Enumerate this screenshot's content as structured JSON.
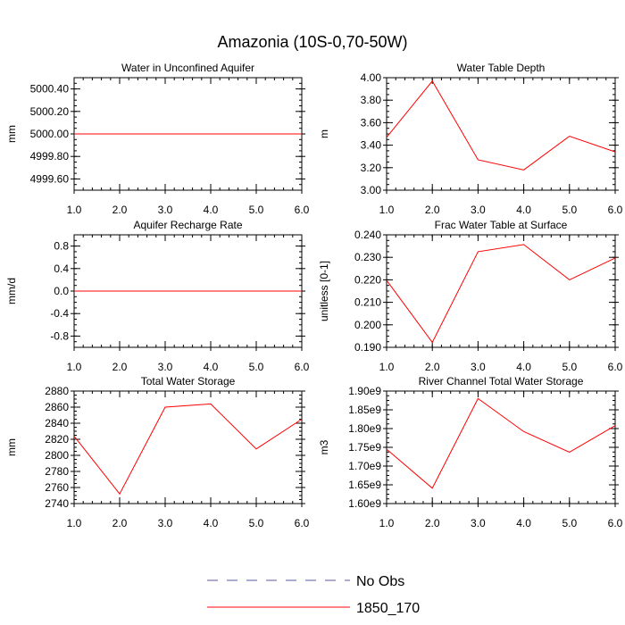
{
  "title": "Amazonia (10S-0,70-50W)",
  "colors": {
    "series": "#ff0000",
    "obs": "#5a5aa0",
    "axis": "#000000"
  },
  "legend": {
    "obs_label": "No Obs",
    "series_label": "1850_170"
  },
  "chart_data": [
    {
      "type": "line",
      "title": "Water in Unconfined Aquifer",
      "ylabel": "mm",
      "x": [
        1,
        2,
        3,
        4,
        5,
        6
      ],
      "xlim": [
        1,
        6
      ],
      "xticks": [
        "1.0",
        "2.0",
        "3.0",
        "4.0",
        "5.0",
        "6.0"
      ],
      "ylim": [
        4999.5,
        5000.5
      ],
      "yticks": [
        {
          "v": 4999.6,
          "label": "4999.60"
        },
        {
          "v": 4999.8,
          "label": "4999.80"
        },
        {
          "v": 5000.0,
          "label": "5000.00"
        },
        {
          "v": 5000.2,
          "label": "5000.20"
        },
        {
          "v": 5000.4,
          "label": "5000.40"
        }
      ],
      "series": [
        {
          "name": "1850_170",
          "values": [
            5000,
            5000,
            5000,
            5000,
            5000,
            5000
          ]
        }
      ]
    },
    {
      "type": "line",
      "title": "Water Table Depth",
      "ylabel": "m",
      "x": [
        1,
        2,
        3,
        4,
        5,
        6
      ],
      "xlim": [
        1,
        6
      ],
      "xticks": [
        "1.0",
        "2.0",
        "3.0",
        "4.0",
        "5.0",
        "6.0"
      ],
      "ylim": [
        3.0,
        4.0
      ],
      "yticks": [
        {
          "v": 3.0,
          "label": "3.00"
        },
        {
          "v": 3.2,
          "label": "3.20"
        },
        {
          "v": 3.4,
          "label": "3.40"
        },
        {
          "v": 3.6,
          "label": "3.60"
        },
        {
          "v": 3.8,
          "label": "3.80"
        },
        {
          "v": 4.0,
          "label": "4.00"
        }
      ],
      "series": [
        {
          "name": "1850_170",
          "values": [
            3.47,
            3.97,
            3.27,
            3.18,
            3.48,
            3.34
          ]
        }
      ]
    },
    {
      "type": "line",
      "title": "Aquifer Recharge Rate",
      "ylabel": "mm/d",
      "x": [
        1,
        2,
        3,
        4,
        5,
        6
      ],
      "xlim": [
        1,
        6
      ],
      "xticks": [
        "1.0",
        "2.0",
        "3.0",
        "4.0",
        "5.0",
        "6.0"
      ],
      "ylim": [
        -1.0,
        1.0
      ],
      "yticks": [
        {
          "v": -0.8,
          "label": "-0.8"
        },
        {
          "v": -0.4,
          "label": "-0.4"
        },
        {
          "v": 0.0,
          "label": "0.0"
        },
        {
          "v": 0.4,
          "label": "0.4"
        },
        {
          "v": 0.8,
          "label": "0.8"
        }
      ],
      "series": [
        {
          "name": "1850_170",
          "values": [
            0,
            0,
            0,
            0,
            0,
            0
          ]
        }
      ]
    },
    {
      "type": "line",
      "title": "Frac Water Table at Surface",
      "ylabel": "unitless [0-1]",
      "x": [
        1,
        2,
        3,
        4,
        5,
        6
      ],
      "xlim": [
        1,
        6
      ],
      "xticks": [
        "1.0",
        "2.0",
        "3.0",
        "4.0",
        "5.0",
        "6.0"
      ],
      "ylim": [
        0.19,
        0.24
      ],
      "yticks": [
        {
          "v": 0.19,
          "label": "0.190"
        },
        {
          "v": 0.2,
          "label": "0.200"
        },
        {
          "v": 0.21,
          "label": "0.210"
        },
        {
          "v": 0.22,
          "label": "0.220"
        },
        {
          "v": 0.23,
          "label": "0.230"
        },
        {
          "v": 0.24,
          "label": "0.240"
        }
      ],
      "series": [
        {
          "name": "1850_170",
          "values": [
            0.2198,
            0.1922,
            0.2325,
            0.2357,
            0.22,
            0.2297
          ]
        }
      ]
    },
    {
      "type": "line",
      "title": "Total Water Storage",
      "ylabel": "mm",
      "x": [
        1,
        2,
        3,
        4,
        5,
        6
      ],
      "xlim": [
        1,
        6
      ],
      "xticks": [
        "1.0",
        "2.0",
        "3.0",
        "4.0",
        "5.0",
        "6.0"
      ],
      "ylim": [
        2740,
        2880
      ],
      "yticks": [
        {
          "v": 2740,
          "label": "2740"
        },
        {
          "v": 2760,
          "label": "2760"
        },
        {
          "v": 2780,
          "label": "2780"
        },
        {
          "v": 2800,
          "label": "2800"
        },
        {
          "v": 2820,
          "label": "2820"
        },
        {
          "v": 2840,
          "label": "2840"
        },
        {
          "v": 2860,
          "label": "2860"
        },
        {
          "v": 2880,
          "label": "2880"
        }
      ],
      "series": [
        {
          "name": "1850_170",
          "values": [
            2824,
            2752,
            2860,
            2864,
            2808,
            2845
          ]
        }
      ]
    },
    {
      "type": "line",
      "title": "River Channel Total Water Storage",
      "ylabel": "m3",
      "x": [
        1,
        2,
        3,
        4,
        5,
        6
      ],
      "xlim": [
        1,
        6
      ],
      "xticks": [
        "1.0",
        "2.0",
        "3.0",
        "4.0",
        "5.0",
        "6.0"
      ],
      "ylim": [
        1600000000.0,
        1900000000.0
      ],
      "yticks": [
        {
          "v": 1600000000.0,
          "label": "1.60e9"
        },
        {
          "v": 1650000000.0,
          "label": "1.65e9"
        },
        {
          "v": 1700000000.0,
          "label": "1.70e9"
        },
        {
          "v": 1750000000.0,
          "label": "1.75e9"
        },
        {
          "v": 1800000000.0,
          "label": "1.80e9"
        },
        {
          "v": 1850000000.0,
          "label": "1.85e9"
        },
        {
          "v": 1900000000.0,
          "label": "1.90e9"
        }
      ],
      "series": [
        {
          "name": "1850_170",
          "values": [
            1745000000.0,
            1641000000.0,
            1880000000.0,
            1792000000.0,
            1737000000.0,
            1808000000.0
          ]
        }
      ]
    }
  ]
}
